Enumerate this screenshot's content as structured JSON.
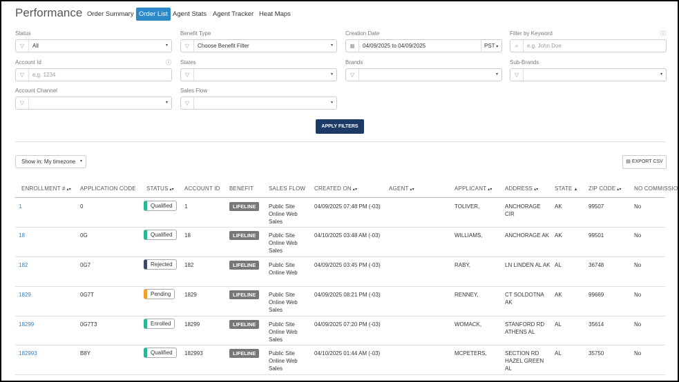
{
  "header": {
    "title": "Performance",
    "tabs": [
      "Order Summary",
      "Order List",
      "Agent Stats",
      "Agent Tracker",
      "Heat Maps"
    ],
    "active_tab": 1
  },
  "filters": [
    {
      "label": "Status",
      "kind": "select",
      "value": "All"
    },
    {
      "label": "Benefit Type",
      "kind": "select",
      "value": "Choose Benefit Filter"
    },
    {
      "label": "Creation Date",
      "kind": "date",
      "value": "04/09/2025 to 04/09/2025",
      "timezone": "PST"
    },
    {
      "label": "Filter by Keyword",
      "kind": "text",
      "placeholder": "e.g. John Doe",
      "info": true
    },
    {
      "label": "Account Id",
      "kind": "text",
      "placeholder": "e.g. 1234",
      "info": true
    },
    {
      "label": "States",
      "kind": "select"
    },
    {
      "label": "Brands",
      "kind": "select"
    },
    {
      "label": "Sub-Brands",
      "kind": "select"
    },
    {
      "label": "Account Channel",
      "kind": "select"
    },
    {
      "label": "Sales Flow",
      "kind": "select"
    }
  ],
  "apply_button": "APPLY FILTERS",
  "timezone_select": "Show in: My timezone",
  "export_button": "EXPORT CSV",
  "table": {
    "columns": [
      {
        "label": "ENROLLMENT #",
        "sortable": true
      },
      {
        "label": "APPLICATION CODE",
        "sortable": false
      },
      {
        "label": "STATUS",
        "sortable": true
      },
      {
        "label": "ACCOUNT ID",
        "sortable": false
      },
      {
        "label": "BENEFIT",
        "sortable": false
      },
      {
        "label": "SALES FLOW",
        "sortable": false
      },
      {
        "label": "CREATED ON",
        "sortable": true
      },
      {
        "label": "AGENT",
        "sortable": true
      },
      {
        "label": "APPLICANT",
        "sortable": true
      },
      {
        "label": "ADDRESS",
        "sortable": true
      },
      {
        "label": "STATE",
        "sortable": true,
        "sorted": "asc"
      },
      {
        "label": "ZIP CODE",
        "sortable": true
      },
      {
        "label": "NO COMMISSION",
        "sortable": false
      }
    ],
    "rows": [
      {
        "cells": [
          "1",
          "0",
          "Qualified",
          "1",
          "LIFELINE",
          "Public Site Online Web Sales",
          "04/09/2025 07:48 PM (-03)",
          null,
          "TOLIVER,",
          "ANCHORAGE CIR",
          "AK",
          "99507",
          "No"
        ],
        "status_color": "#2bb594"
      },
      {
        "cells": [
          "18",
          "0G",
          "Qualified",
          "18",
          "LIFELINE",
          "Public Site Online Web Sales",
          "04/10/2025 03:48 AM (-03)",
          null,
          "WILLIAMS,",
          "ANCHORAGE AK",
          "AK",
          "99501",
          "No"
        ],
        "status_color": "#2bb594"
      },
      {
        "cells": [
          "182",
          "0G7",
          "Rejected",
          "182",
          "LIFELINE",
          "Public Site Online Web",
          "04/09/2025 03:45 PM (-03)",
          null,
          "RABY,",
          "LN LINDEN AL AK",
          "AL",
          "36748",
          "No"
        ],
        "status_color": "#3d4a63"
      },
      {
        "cells": [
          "1829",
          "0G7T",
          "Pending",
          "1829",
          "LIFELINE",
          "Public Site Online Web Sales",
          "04/09/2025 08:21 PM (-03)",
          null,
          "RENNEY,",
          "CT SOLDOTNA AK",
          "AK",
          "99669",
          "No"
        ],
        "status_color": "#f0a12c"
      },
      {
        "cells": [
          "18299",
          "0G7T3",
          "Enrolled",
          "18299",
          "LIFELINE",
          "Public Site Online Web Sales",
          "04/09/2025 07:20 PM (-03)",
          null,
          "WOMACK,",
          "STANFORD RD ATHENS AL",
          "AL",
          "35614",
          "No"
        ],
        "status_color": "#2bb594"
      },
      {
        "cells": [
          "182993",
          "B8Y",
          "Qualified",
          "182993",
          "LIFELINE",
          "Public Site Online Web Sales",
          "04/10/2025 01:44 AM (-03)",
          null,
          "MCPETERS,",
          "SECTION RD HAZEL GREEN AL",
          "AL",
          "35750",
          "No"
        ],
        "status_color": "#2bb594"
      }
    ]
  }
}
